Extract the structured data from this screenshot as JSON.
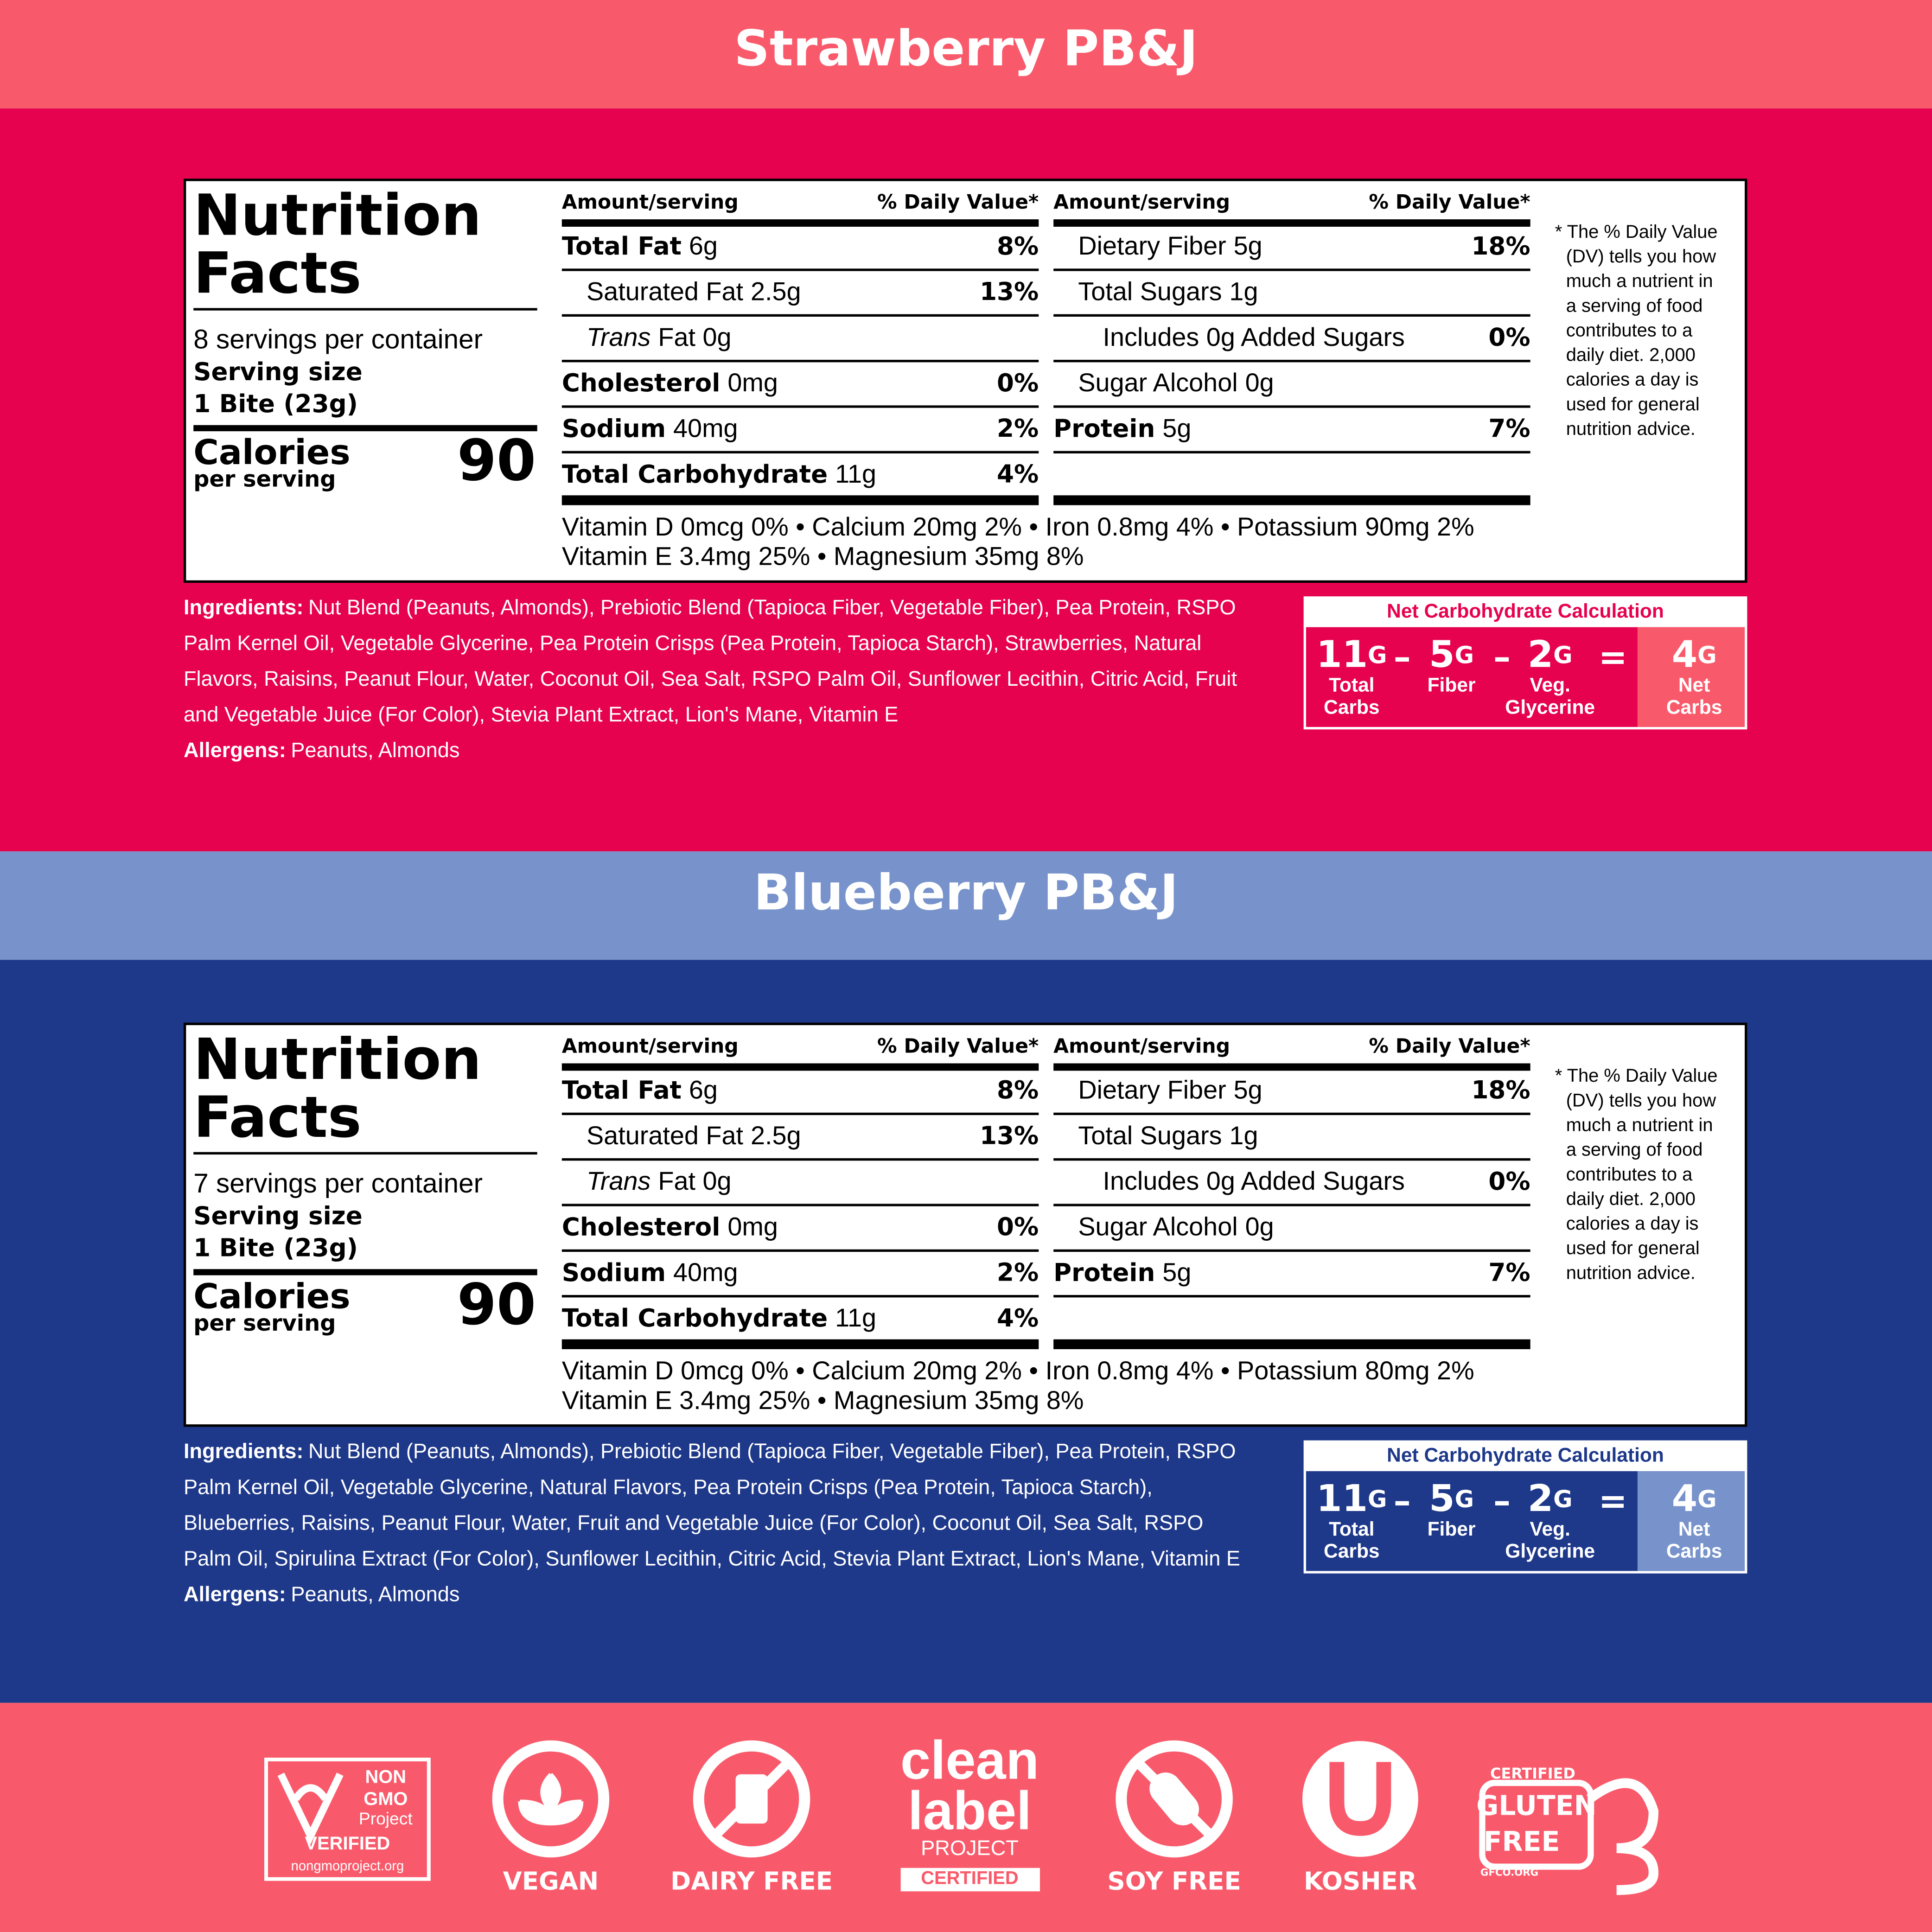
{
  "footer_color": "#F95A6B",
  "sections": [
    {
      "title": "Strawberry PB&J",
      "colors": {
        "header": "#F95A6B",
        "body": "#E6024F",
        "result": "#F95A6B"
      },
      "label_title": [
        "Nutrition",
        "Facts"
      ],
      "servings": "8 servings per container",
      "serving_size_label": "Serving size",
      "serving_size": "1 Bite (23g)",
      "calories_label": "Calories",
      "per_serving": "per serving",
      "calories": 90,
      "column_header": {
        "amount": "Amount/serving",
        "dv": "% Daily Value*"
      },
      "left_rows": [
        {
          "name": "Total Fat",
          "amount": "6g",
          "dv": "8%",
          "bold": true,
          "indent": 0
        },
        {
          "name": "Saturated Fat",
          "amount": "2.5g",
          "dv": "13%",
          "bold": false,
          "indent": 1
        },
        {
          "name": "Trans",
          "amount": "Fat 0g",
          "bold": false,
          "italic": true,
          "indent": 1
        },
        {
          "name": "Cholesterol",
          "amount": "0mg",
          "dv": "0%",
          "bold": true,
          "indent": 0
        },
        {
          "name": "Sodium",
          "amount": "40mg",
          "dv": "2%",
          "bold": true,
          "indent": 0
        },
        {
          "name": "Total Carbohydrate",
          "amount": "11g",
          "dv": "4%",
          "bold": true,
          "indent": 0
        }
      ],
      "right_rows": [
        {
          "name": "Dietary Fiber",
          "amount": "5g",
          "dv": "18%",
          "bold": false,
          "indent": 1
        },
        {
          "name": "Total Sugars",
          "amount": "1g",
          "bold": false,
          "indent": 1
        },
        {
          "name": "Includes 0g Added Sugars",
          "dv": "0%",
          "bold": false,
          "indent": 2
        },
        {
          "name": "Sugar Alcohol",
          "amount": "0g",
          "bold": false,
          "indent": 1
        },
        {
          "name": "Protein",
          "amount": "5g",
          "dv": "7%",
          "bold": true,
          "indent": 0
        }
      ],
      "vitamins": [
        "Vitamin D 0mcg 0% • Calcium 20mg 2% • Iron 0.8mg 4% • Potassium 90mg 2%",
        "Vitamin E 3.4mg 25% • Magnesium 35mg 8%"
      ],
      "footnote": [
        "* The % Daily Value",
        "(DV) tells you how",
        "much a nutrient in",
        "a serving of food",
        "contributes to a",
        "daily diet. 2,000",
        "calories a day is",
        "used for general",
        "nutrition advice."
      ],
      "ingredients_label": "Ingredients:",
      "ingredients": [
        "Nut Blend (Peanuts, Almonds), Prebiotic Blend (Tapioca Fiber, Vegetable Fiber), Pea Protein, RSPO",
        "Palm Kernel Oil, Vegetable Glycerine, Pea Protein Crisps (Pea Protein, Tapioca Starch), Strawberries, Natural",
        "Flavors, Raisins, Peanut Flour, Water, Coconut Oil, Sea Salt, RSPO Palm Oil, Sunflower Lecithin, Citric Acid, Fruit",
        "and Vegetable Juice (For Color), Stevia Plant Extract, Lion's Mane, Vitamin E"
      ],
      "allergens_label": "Allergens:",
      "allergens": "Peanuts, Almonds",
      "net_carb": {
        "title": "Net Carbohydrate Calculation",
        "terms": [
          {
            "value": 11,
            "unit": "G",
            "label": [
              "Total",
              "Carbs"
            ]
          },
          {
            "value": 5,
            "unit": "G",
            "label": [
              "Fiber"
            ]
          },
          {
            "value": 2,
            "unit": "G",
            "label": [
              "Veg.",
              "Glycerine"
            ]
          },
          {
            "value": 4,
            "unit": "G",
            "label": [
              "Net",
              "Carbs"
            ]
          }
        ],
        "operators": [
          "–",
          "–",
          "="
        ]
      }
    },
    {
      "title": "Blueberry PB&J",
      "colors": {
        "header": "#7893CB",
        "body": "#1E388A",
        "result": "#7893CB"
      },
      "label_title": [
        "Nutrition",
        "Facts"
      ],
      "servings": "7 servings per container",
      "serving_size_label": "Serving size",
      "serving_size": "1 Bite (23g)",
      "calories_label": "Calories",
      "per_serving": "per serving",
      "calories": 90,
      "column_header": {
        "amount": "Amount/serving",
        "dv": "% Daily Value*"
      },
      "left_rows": [
        {
          "name": "Total Fat",
          "amount": "6g",
          "dv": "8%",
          "bold": true,
          "indent": 0
        },
        {
          "name": "Saturated Fat",
          "amount": "2.5g",
          "dv": "13%",
          "bold": false,
          "indent": 1
        },
        {
          "name": "Trans",
          "amount": "Fat 0g",
          "bold": false,
          "italic": true,
          "indent": 1
        },
        {
          "name": "Cholesterol",
          "amount": "0mg",
          "dv": "0%",
          "bold": true,
          "indent": 0
        },
        {
          "name": "Sodium",
          "amount": "40mg",
          "dv": "2%",
          "bold": true,
          "indent": 0
        },
        {
          "name": "Total Carbohydrate",
          "amount": "11g",
          "dv": "4%",
          "bold": true,
          "indent": 0
        }
      ],
      "right_rows": [
        {
          "name": "Dietary Fiber",
          "amount": "5g",
          "dv": "18%",
          "bold": false,
          "indent": 1
        },
        {
          "name": "Total Sugars",
          "amount": "1g",
          "bold": false,
          "indent": 1
        },
        {
          "name": "Includes 0g Added Sugars",
          "dv": "0%",
          "bold": false,
          "indent": 2
        },
        {
          "name": "Sugar Alcohol",
          "amount": "0g",
          "bold": false,
          "indent": 1
        },
        {
          "name": "Protein",
          "amount": "5g",
          "dv": "7%",
          "bold": true,
          "indent": 0
        }
      ],
      "vitamins": [
        "Vitamin D 0mcg 0% • Calcium 20mg 2% • Iron 0.8mg 4% • Potassium 80mg 2%",
        "Vitamin E 3.4mg 25% • Magnesium 35mg 8%"
      ],
      "footnote": [
        "* The % Daily Value",
        "(DV) tells you how",
        "much a nutrient in",
        "a serving of food",
        "contributes to a",
        "daily diet. 2,000",
        "calories a day is",
        "used for general",
        "nutrition advice."
      ],
      "ingredients_label": "Ingredients:",
      "ingredients": [
        "Nut Blend (Peanuts, Almonds), Prebiotic Blend (Tapioca Fiber, Vegetable Fiber), Pea Protein, RSPO",
        "Palm Kernel Oil, Vegetable Glycerine, Natural Flavors, Pea Protein Crisps (Pea Protein, Tapioca Starch),",
        "Blueberries, Raisins, Peanut Flour, Water, Fruit and Vegetable Juice (For Color), Coconut Oil, Sea Salt, RSPO",
        "Palm Oil, Spirulina Extract (For Color), Sunflower Lecithin, Citric Acid, Stevia Plant Extract, Lion's Mane, Vitamin E"
      ],
      "allergens_label": "Allergens:",
      "allergens": "Peanuts, Almonds",
      "net_carb": {
        "title": "Net Carbohydrate Calculation",
        "terms": [
          {
            "value": 11,
            "unit": "G",
            "label": [
              "Total",
              "Carbs"
            ]
          },
          {
            "value": 5,
            "unit": "G",
            "label": [
              "Fiber"
            ]
          },
          {
            "value": 2,
            "unit": "G",
            "label": [
              "Veg.",
              "Glycerine"
            ]
          },
          {
            "value": 4,
            "unit": "G",
            "label": [
              "Net",
              "Carbs"
            ]
          }
        ],
        "operators": [
          "–",
          "–",
          "="
        ]
      }
    }
  ],
  "badges": [
    {
      "text": [
        "NON",
        "GMO",
        "Project",
        "VERIFIED",
        "nongmoproject.org"
      ]
    },
    {
      "label": "VEGAN"
    },
    {
      "label": "DAIRY FREE"
    },
    {
      "text": [
        "clean",
        "label",
        "PROJECT",
        "CERTIFIED"
      ]
    },
    {
      "label": "SOY FREE"
    },
    {
      "label": "KOSHER"
    },
    {
      "text": [
        "CERTIFIED",
        "GLUTEN",
        "FREE",
        "GFCO.ORG"
      ]
    }
  ]
}
